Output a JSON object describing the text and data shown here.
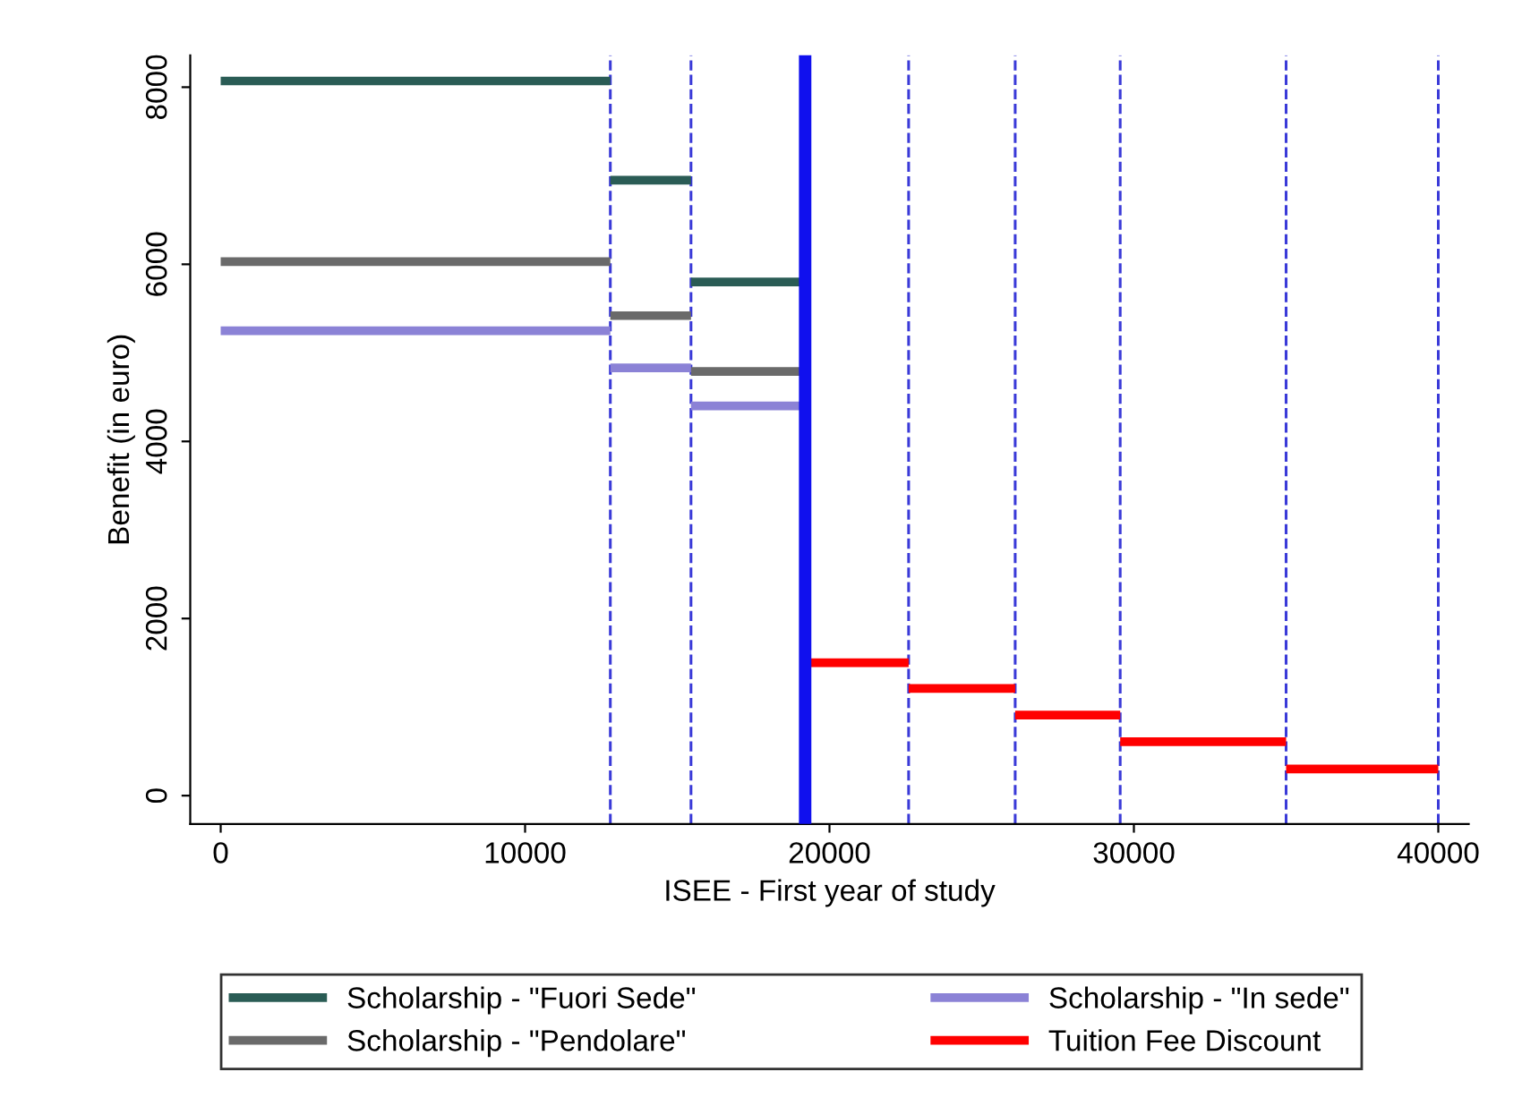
{
  "chart_data": {
    "type": "line",
    "xlabel": "ISEE - First year of study",
    "ylabel": "Benefit (in euro)",
    "xlim": [
      -1000,
      41000
    ],
    "ylim": [
      -320,
      8360
    ],
    "xticks": [
      0,
      10000,
      20000,
      30000,
      40000
    ],
    "yticks": [
      0,
      2000,
      4000,
      6000,
      8000
    ],
    "grid": false,
    "legend": "bottom",
    "marker": "none",
    "line_style": "solid",
    "series": [
      {
        "name": "Scholarship - \"Fuori Sede\"",
        "color": "#2a5c55",
        "x": [
          0,
          12800,
          null,
          12800,
          15450,
          null,
          15450,
          19200
        ],
        "values": [
          8070,
          8070,
          null,
          6950,
          6950,
          null,
          5800,
          5800
        ]
      },
      {
        "name": "Scholarship - \"Pendolare\"",
        "color": "#6a6a6a",
        "x": [
          0,
          12800,
          null,
          12800,
          15450,
          null,
          15450,
          19200
        ],
        "values": [
          6030,
          6030,
          null,
          5420,
          5420,
          null,
          4790,
          4790
        ]
      },
      {
        "name": "Scholarship - \"In sede\"",
        "color": "#8b82d6",
        "x": [
          0,
          12800,
          null,
          12800,
          15450,
          null,
          15450,
          19200
        ],
        "values": [
          5250,
          5250,
          null,
          4830,
          4830,
          null,
          4400,
          4400
        ]
      },
      {
        "name": "Tuition Fee Discount",
        "color": "#ff0000",
        "x": [
          19200,
          22600,
          null,
          22600,
          26100,
          null,
          26100,
          29550,
          null,
          29550,
          35000,
          null,
          35000,
          40000
        ],
        "values": [
          1500,
          1500,
          null,
          1210,
          1210,
          null,
          910,
          910,
          null,
          610,
          610,
          null,
          300,
          300
        ]
      }
    ],
    "ref_lines": [
      {
        "axis": "x",
        "value": 12800,
        "color": "#3a3ad8",
        "line_style": "dashed"
      },
      {
        "axis": "x",
        "value": 15450,
        "color": "#3a3ad8",
        "line_style": "dashed"
      },
      {
        "axis": "x",
        "value": 19200,
        "color": "#1010ee",
        "line_style": "solid"
      },
      {
        "axis": "x",
        "value": 22600,
        "color": "#3a3ad8",
        "line_style": "dashed"
      },
      {
        "axis": "x",
        "value": 26100,
        "color": "#3a3ad8",
        "line_style": "dashed"
      },
      {
        "axis": "x",
        "value": 29550,
        "color": "#3a3ad8",
        "line_style": "dashed"
      },
      {
        "axis": "x",
        "value": 35000,
        "color": "#3a3ad8",
        "line_style": "dashed"
      },
      {
        "axis": "x",
        "value": 40000,
        "color": "#3a3ad8",
        "line_style": "dashed"
      }
    ]
  }
}
